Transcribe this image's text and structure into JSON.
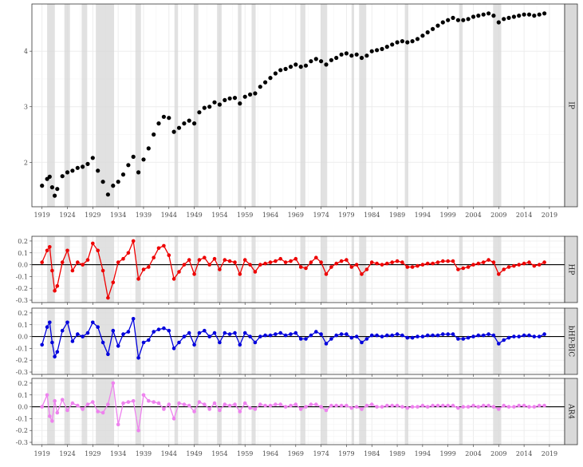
{
  "figure": {
    "x_ticks": [
      "1919",
      "1924",
      "1929",
      "1934",
      "1939",
      "1944",
      "1949",
      "1954",
      "1959",
      "1964",
      "1969",
      "1974",
      "1979",
      "1984",
      "1989",
      "1994",
      "1999",
      "2004",
      "2009",
      "2014",
      "2019"
    ]
  },
  "recessions": [
    [
      1920.0,
      1921.5
    ],
    [
      1923.4,
      1924.5
    ],
    [
      1926.8,
      1927.9
    ],
    [
      1929.6,
      1933.2
    ],
    [
      1937.4,
      1938.5
    ],
    [
      1945.1,
      1945.8
    ],
    [
      1948.9,
      1949.8
    ],
    [
      1953.5,
      1954.4
    ],
    [
      1957.6,
      1958.3
    ],
    [
      1960.3,
      1961.1
    ],
    [
      1969.9,
      1970.9
    ],
    [
      1973.9,
      1975.2
    ],
    [
      1980.0,
      1980.5
    ],
    [
      1981.5,
      1982.9
    ],
    [
      1990.5,
      1991.2
    ],
    [
      2001.2,
      2001.9
    ],
    [
      2007.9,
      2009.5
    ]
  ],
  "colors": {
    "series_1": "#000000",
    "series_2": "#ee0000",
    "series_3": "#0000dd",
    "series_4": "#ee82ee",
    "recession_band": "#d9d9d9",
    "panel_border": "#333333",
    "strip_fill": "#d9d9d9",
    "zero_line": "#000000",
    "grid": "#ebebeb"
  },
  "chart_data": [
    {
      "type": "scatter",
      "strip_label": "IP",
      "series": [
        {
          "name": "IP"
        }
      ],
      "xlim": [
        1917,
        2022
      ],
      "ylim": [
        1.2,
        4.85
      ],
      "y_ticks": [
        "2",
        "3",
        "4"
      ],
      "y_tick_values": [
        2,
        3,
        4
      ],
      "grid": true,
      "x": [
        1919,
        1920,
        1920.5,
        1921,
        1921.5,
        1922,
        1923,
        1924,
        1925,
        1926,
        1927,
        1928,
        1929,
        1930,
        1931,
        1932,
        1933,
        1934,
        1935,
        1936,
        1937,
        1938,
        1939,
        1940,
        1941,
        1942,
        1943,
        1944,
        1945,
        1946,
        1947,
        1948,
        1949,
        1950,
        1951,
        1952,
        1953,
        1954,
        1955,
        1956,
        1957,
        1958,
        1959,
        1960,
        1961,
        1962,
        1963,
        1964,
        1965,
        1966,
        1967,
        1968,
        1969,
        1970,
        1971,
        1972,
        1973,
        1974,
        1975,
        1976,
        1977,
        1978,
        1979,
        1980,
        1981,
        1982,
        1983,
        1984,
        1985,
        1986,
        1987,
        1988,
        1989,
        1990,
        1991,
        1992,
        1993,
        1994,
        1995,
        1996,
        1997,
        1998,
        1999,
        2000,
        2001,
        2002,
        2003,
        2004,
        2005,
        2006,
        2007,
        2008,
        2009,
        2010,
        2011,
        2012,
        2013,
        2014,
        2015,
        2016,
        2017,
        2018
      ],
      "y": [
        1.58,
        1.7,
        1.74,
        1.55,
        1.4,
        1.52,
        1.75,
        1.82,
        1.85,
        1.9,
        1.92,
        1.97,
        2.08,
        1.85,
        1.65,
        1.42,
        1.58,
        1.65,
        1.78,
        1.95,
        2.1,
        1.82,
        2.05,
        2.25,
        2.5,
        2.7,
        2.82,
        2.8,
        2.55,
        2.62,
        2.7,
        2.75,
        2.7,
        2.9,
        2.98,
        3.0,
        3.08,
        3.04,
        3.12,
        3.15,
        3.16,
        3.06,
        3.18,
        3.22,
        3.24,
        3.36,
        3.44,
        3.52,
        3.6,
        3.66,
        3.68,
        3.72,
        3.76,
        3.72,
        3.74,
        3.82,
        3.86,
        3.82,
        3.76,
        3.84,
        3.88,
        3.94,
        3.96,
        3.92,
        3.94,
        3.88,
        3.92,
        4.0,
        4.02,
        4.04,
        4.08,
        4.12,
        4.16,
        4.18,
        4.16,
        4.18,
        4.22,
        4.28,
        4.34,
        4.4,
        4.46,
        4.52,
        4.56,
        4.6,
        4.56,
        4.56,
        4.58,
        4.62,
        4.64,
        4.66,
        4.68,
        4.64,
        4.52,
        4.58,
        4.6,
        4.62,
        4.64,
        4.66,
        4.66,
        4.64,
        4.66,
        4.68
      ]
    },
    {
      "type": "line",
      "strip_label": "HP",
      "series": [
        {
          "name": "HP"
        }
      ],
      "xlim": [
        1917,
        2022
      ],
      "ylim": [
        -0.32,
        0.24
      ],
      "y_ticks": [
        "-0.3",
        "-0.2",
        "-0.1",
        "0.0",
        "0.1",
        "0.2"
      ],
      "y_tick_values": [
        -0.3,
        -0.2,
        -0.1,
        0,
        0.1,
        0.2
      ],
      "grid": true,
      "x": [
        1919,
        1920,
        1920.5,
        1921,
        1921.5,
        1922,
        1923,
        1924,
        1925,
        1926,
        1927,
        1928,
        1929,
        1930,
        1931,
        1932,
        1933,
        1934,
        1935,
        1936,
        1937,
        1938,
        1939,
        1940,
        1941,
        1942,
        1943,
        1944,
        1945,
        1946,
        1947,
        1948,
        1949,
        1950,
        1951,
        1952,
        1953,
        1954,
        1955,
        1956,
        1957,
        1958,
        1959,
        1960,
        1961,
        1962,
        1963,
        1964,
        1965,
        1966,
        1967,
        1968,
        1969,
        1970,
        1971,
        1972,
        1973,
        1974,
        1975,
        1976,
        1977,
        1978,
        1979,
        1980,
        1981,
        1982,
        1983,
        1984,
        1985,
        1986,
        1987,
        1988,
        1989,
        1990,
        1991,
        1992,
        1993,
        1994,
        1995,
        1996,
        1997,
        1998,
        1999,
        2000,
        2001,
        2002,
        2003,
        2004,
        2005,
        2006,
        2007,
        2008,
        2009,
        2010,
        2011,
        2012,
        2013,
        2014,
        2015,
        2016,
        2017,
        2018
      ],
      "y": [
        0.02,
        0.12,
        0.15,
        -0.05,
        -0.22,
        -0.18,
        0.02,
        0.12,
        -0.05,
        0.02,
        0.0,
        0.04,
        0.18,
        0.12,
        -0.05,
        -0.28,
        -0.15,
        0.02,
        0.05,
        0.1,
        0.2,
        -0.12,
        -0.04,
        -0.02,
        0.06,
        0.14,
        0.16,
        0.08,
        -0.12,
        -0.06,
        0.0,
        0.04,
        -0.08,
        0.04,
        0.06,
        0.0,
        0.05,
        -0.04,
        0.04,
        0.03,
        0.02,
        -0.08,
        0.04,
        0.0,
        -0.06,
        0.0,
        0.01,
        0.02,
        0.03,
        0.05,
        0.02,
        0.03,
        0.05,
        -0.02,
        -0.03,
        0.02,
        0.06,
        0.02,
        -0.08,
        -0.02,
        0.01,
        0.03,
        0.04,
        -0.02,
        0.0,
        -0.08,
        -0.04,
        0.02,
        0.01,
        0.0,
        0.01,
        0.02,
        0.03,
        0.02,
        -0.02,
        -0.02,
        -0.01,
        0.0,
        0.01,
        0.01,
        0.02,
        0.03,
        0.03,
        0.03,
        -0.04,
        -0.03,
        -0.02,
        0.0,
        0.01,
        0.02,
        0.04,
        0.02,
        -0.08,
        -0.04,
        -0.02,
        -0.01,
        0.0,
        0.01,
        0.02,
        -0.01,
        0.0,
        0.02
      ]
    },
    {
      "type": "line",
      "strip_label": "bHP-BIC",
      "series": [
        {
          "name": "bHP-BIC"
        }
      ],
      "xlim": [
        1917,
        2022
      ],
      "ylim": [
        -0.32,
        0.24
      ],
      "y_ticks": [
        "-0.3",
        "-0.2",
        "-0.1",
        "0.0",
        "0.1",
        "0.2"
      ],
      "y_tick_values": [
        -0.3,
        -0.2,
        -0.1,
        0,
        0.1,
        0.2
      ],
      "grid": true,
      "x": [
        1919,
        1920,
        1920.5,
        1921,
        1921.5,
        1922,
        1923,
        1924,
        1925,
        1926,
        1927,
        1928,
        1929,
        1930,
        1931,
        1932,
        1933,
        1934,
        1935,
        1936,
        1937,
        1938,
        1939,
        1940,
        1941,
        1942,
        1943,
        1944,
        1945,
        1946,
        1947,
        1948,
        1949,
        1950,
        1951,
        1952,
        1953,
        1954,
        1955,
        1956,
        1957,
        1958,
        1959,
        1960,
        1961,
        1962,
        1963,
        1964,
        1965,
        1966,
        1967,
        1968,
        1969,
        1970,
        1971,
        1972,
        1973,
        1974,
        1975,
        1976,
        1977,
        1978,
        1979,
        1980,
        1981,
        1982,
        1983,
        1984,
        1985,
        1986,
        1987,
        1988,
        1989,
        1990,
        1991,
        1992,
        1993,
        1994,
        1995,
        1996,
        1997,
        1998,
        1999,
        2000,
        2001,
        2002,
        2003,
        2004,
        2005,
        2006,
        2007,
        2008,
        2009,
        2010,
        2011,
        2012,
        2013,
        2014,
        2015,
        2016,
        2017,
        2018
      ],
      "y": [
        -0.07,
        0.08,
        0.12,
        -0.05,
        -0.17,
        -0.13,
        0.05,
        0.12,
        -0.04,
        0.02,
        0.0,
        0.03,
        0.12,
        0.08,
        -0.05,
        -0.15,
        0.05,
        -0.08,
        0.02,
        0.04,
        0.15,
        -0.18,
        -0.05,
        -0.03,
        0.04,
        0.06,
        0.07,
        0.05,
        -0.1,
        -0.05,
        0.0,
        0.03,
        -0.07,
        0.03,
        0.05,
        0.0,
        0.03,
        -0.05,
        0.03,
        0.02,
        0.03,
        -0.07,
        0.03,
        0.0,
        -0.05,
        0.0,
        0.01,
        0.01,
        0.02,
        0.03,
        0.01,
        0.02,
        0.03,
        -0.02,
        -0.02,
        0.01,
        0.04,
        0.02,
        -0.06,
        -0.02,
        0.01,
        0.02,
        0.02,
        -0.01,
        0.0,
        -0.05,
        -0.02,
        0.01,
        0.01,
        0.0,
        0.01,
        0.01,
        0.02,
        0.01,
        -0.01,
        -0.01,
        0.0,
        0.0,
        0.01,
        0.01,
        0.01,
        0.02,
        0.02,
        0.02,
        -0.02,
        -0.02,
        -0.01,
        0.0,
        0.01,
        0.01,
        0.02,
        0.01,
        -0.06,
        -0.03,
        -0.01,
        0.0,
        0.0,
        0.01,
        0.01,
        0.0,
        0.0,
        0.02
      ]
    },
    {
      "type": "line",
      "strip_label": "AR4",
      "series": [
        {
          "name": "AR4"
        }
      ],
      "xlim": [
        1917,
        2022
      ],
      "ylim": [
        -0.32,
        0.24
      ],
      "y_ticks": [
        "-0.3",
        "-0.2",
        "-0.1",
        "0.0",
        "0.1",
        "0.2"
      ],
      "y_tick_values": [
        -0.3,
        -0.2,
        -0.1,
        0,
        0.1,
        0.2
      ],
      "grid": true,
      "x": [
        1919,
        1920,
        1920.5,
        1921,
        1921.5,
        1922,
        1923,
        1924,
        1925,
        1926,
        1927,
        1928,
        1929,
        1930,
        1931,
        1932,
        1933,
        1934,
        1935,
        1936,
        1937,
        1938,
        1939,
        1940,
        1941,
        1942,
        1943,
        1944,
        1945,
        1946,
        1947,
        1948,
        1949,
        1950,
        1951,
        1952,
        1953,
        1954,
        1955,
        1956,
        1957,
        1958,
        1959,
        1960,
        1961,
        1962,
        1963,
        1964,
        1965,
        1966,
        1967,
        1968,
        1969,
        1970,
        1971,
        1972,
        1973,
        1974,
        1975,
        1976,
        1977,
        1978,
        1979,
        1980,
        1981,
        1982,
        1983,
        1984,
        1985,
        1986,
        1987,
        1988,
        1989,
        1990,
        1991,
        1992,
        1993,
        1994,
        1995,
        1996,
        1997,
        1998,
        1999,
        2000,
        2001,
        2002,
        2003,
        2004,
        2005,
        2006,
        2007,
        2008,
        2009,
        2010,
        2011,
        2012,
        2013,
        2014,
        2015,
        2016,
        2017,
        2018
      ],
      "y": [
        0.0,
        0.1,
        -0.08,
        -0.12,
        0.05,
        -0.05,
        0.06,
        -0.03,
        0.03,
        0.01,
        -0.02,
        0.02,
        0.04,
        -0.04,
        -0.05,
        0.02,
        0.2,
        -0.15,
        0.03,
        0.04,
        0.05,
        -0.2,
        0.1,
        0.05,
        0.04,
        0.03,
        -0.02,
        0.02,
        -0.1,
        0.03,
        0.02,
        0.01,
        -0.04,
        0.04,
        0.02,
        -0.02,
        0.03,
        -0.03,
        0.02,
        0.01,
        0.02,
        -0.04,
        0.03,
        -0.01,
        -0.02,
        0.02,
        0.01,
        0.01,
        0.02,
        0.02,
        0.0,
        0.01,
        0.02,
        -0.02,
        0.0,
        0.02,
        0.02,
        0.0,
        -0.03,
        0.01,
        0.01,
        0.01,
        0.01,
        -0.01,
        0.0,
        -0.02,
        0.01,
        0.02,
        0.0,
        0.0,
        0.01,
        0.01,
        0.01,
        0.0,
        -0.01,
        0.0,
        0.0,
        0.01,
        0.0,
        0.01,
        0.01,
        0.01,
        0.01,
        0.01,
        -0.01,
        0.0,
        0.0,
        0.01,
        0.0,
        0.01,
        0.01,
        0.0,
        -0.02,
        0.01,
        0.0,
        0.0,
        0.01,
        0.01,
        0.0,
        0.0,
        0.01,
        0.01
      ]
    }
  ]
}
